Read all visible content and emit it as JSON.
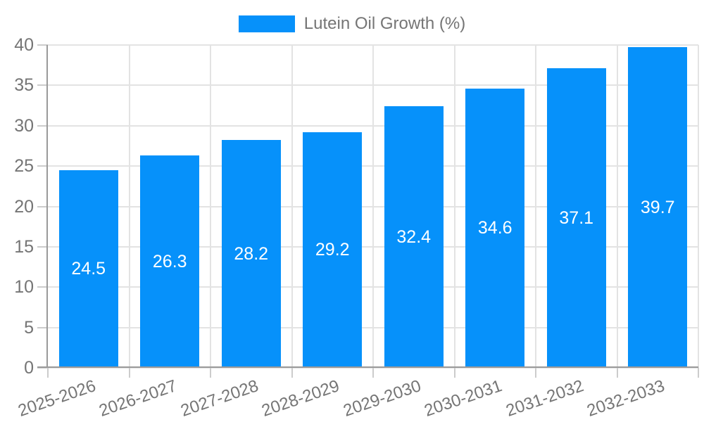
{
  "chart_data": {
    "type": "bar",
    "title": "",
    "legend_label": "Lutein Oil Growth (%)",
    "legend_position": "top-center",
    "categories": [
      "2025-2026",
      "2026-2027",
      "2027-2028",
      "2028-2029",
      "2029-2030",
      "2030-2031",
      "2031-2032",
      "2032-2033"
    ],
    "series": [
      {
        "name": "Lutein Oil Growth (%)",
        "values": [
          24.5,
          26.3,
          28.2,
          29.2,
          32.4,
          34.6,
          37.1,
          39.7
        ],
        "value_labels": [
          "24.5",
          "26.3",
          "28.2",
          "29.2",
          "32.4",
          "34.6",
          "37.1",
          "39.7"
        ]
      }
    ],
    "xlabel": "",
    "ylabel": "",
    "ylim": [
      0,
      40
    ],
    "ytick_step": 5,
    "ytick_labels": [
      "0",
      "5",
      "10",
      "15",
      "20",
      "25",
      "30",
      "35",
      "40"
    ],
    "grid": true,
    "x_label_rotation_deg": -19,
    "colors": {
      "bar": "#0691fa",
      "axis_line": "#9a9a9a",
      "gridline": "#e3e3e3",
      "tick_mark": "#cccccc",
      "tick_label": "#757575",
      "legend_text": "#757575",
      "value_label": "#ffffff",
      "background": "#ffffff"
    }
  }
}
